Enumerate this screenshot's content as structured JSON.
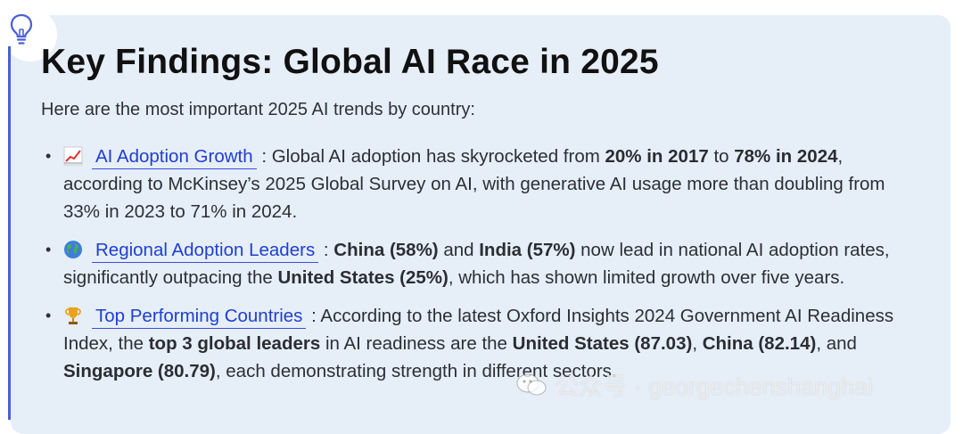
{
  "title": "Key Findings: Global AI Race in 2025",
  "intro": "Here are the most important 2025 AI trends by country:",
  "bullet_char": "•",
  "items": [
    {
      "link": "AI Adoption Growth",
      "sep": " : ",
      "t1": "Global AI adoption has skyrocketed from ",
      "b1": "20% in 2017",
      "t2": " to ",
      "b2": "78% in 2024",
      "t3": ", according to McKinsey’s 2025 Global Survey on AI, with generative AI usage more than doubling from 33% in 2023 to 71% in 2024."
    },
    {
      "link": "Regional Adoption Leaders",
      "sep": " : ",
      "b1": "China (58%)",
      "t1": " and ",
      "b2": "India (57%)",
      "t2": " now lead in national AI adoption rates, significantly outpacing the ",
      "b3": "United States (25%)",
      "t3": ", which has shown limited growth over five years."
    },
    {
      "link": "Top Performing Countries",
      "sep": " : ",
      "t1": "According to the latest Oxford Insights 2024 Government AI Readiness Index, the ",
      "b1": "top 3 global leaders",
      "t2": " in AI readiness are the ",
      "b2": "United States (87.03)",
      "t3": ", ",
      "b3": "China (82.14)",
      "t4": ", and ",
      "b4": "Singapore (80.79)",
      "t5": ", each demonstrating strength in different sectors."
    }
  ],
  "watermark": "公众号 · georgechenshanghai",
  "colors": {
    "card": "#e6eef8",
    "accent": "#4a5fd8",
    "link": "#1f3fd1"
  }
}
